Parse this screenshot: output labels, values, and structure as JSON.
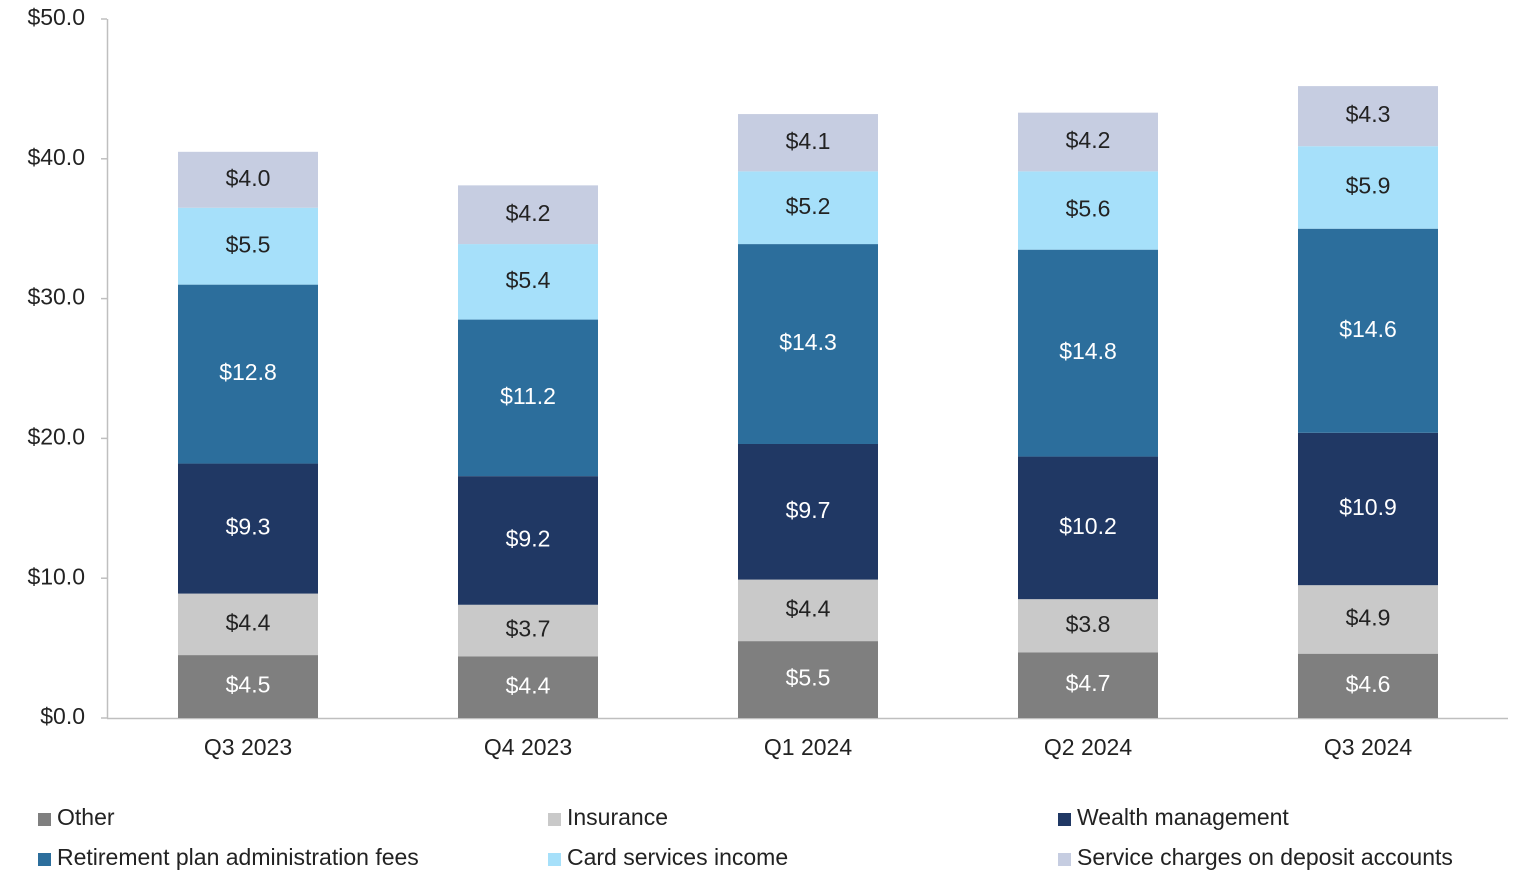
{
  "chart_data": {
    "type": "stacked_bar",
    "categories": [
      "Q3 2023",
      "Q4 2023",
      "Q1 2024",
      "Q2 2024",
      "Q3 2024"
    ],
    "series": [
      {
        "name": "Other",
        "color": "#7f7f7f",
        "label_color": "#ffffff",
        "values": [
          4.5,
          4.4,
          5.5,
          4.7,
          4.6
        ],
        "value_labels": [
          "$4.5",
          "$4.4",
          "$5.5",
          "$4.7",
          "$4.6"
        ]
      },
      {
        "name": "Insurance",
        "color": "#c9c9c9",
        "label_color": "#222222",
        "values": [
          4.4,
          3.7,
          4.4,
          3.8,
          4.9
        ],
        "value_labels": [
          "$4.4",
          "$3.7",
          "$4.4",
          "$3.8",
          "$4.9"
        ]
      },
      {
        "name": "Wealth management",
        "color": "#203864",
        "label_color": "#ffffff",
        "values": [
          9.3,
          9.2,
          9.7,
          10.2,
          10.9
        ],
        "value_labels": [
          "$9.3",
          "$9.2",
          "$9.7",
          "$10.2",
          "$10.9"
        ]
      },
      {
        "name": "Retirement plan administration fees",
        "color": "#2c6e9c",
        "label_color": "#ffffff",
        "values": [
          12.8,
          11.2,
          14.3,
          14.8,
          14.6
        ],
        "value_labels": [
          "$12.8",
          "$11.2",
          "$14.3",
          "$14.8",
          "$14.6"
        ]
      },
      {
        "name": "Card services income",
        "color": "#a6e0fa",
        "label_color": "#222222",
        "values": [
          5.5,
          5.4,
          5.2,
          5.6,
          5.9
        ],
        "value_labels": [
          "$5.5",
          "$5.4",
          "$5.2",
          "$5.6",
          "$5.9"
        ]
      },
      {
        "name": "Service charges on deposit accounts",
        "color": "#c6cde1",
        "label_color": "#222222",
        "values": [
          4.0,
          4.2,
          4.1,
          4.2,
          4.3
        ],
        "value_labels": [
          "$4.0",
          "$4.2",
          "$4.1",
          "$4.2",
          "$4.3"
        ]
      }
    ],
    "ylim": [
      0,
      50
    ],
    "yticks": [
      {
        "value": 0,
        "label": "$0.0"
      },
      {
        "value": 10,
        "label": "$10.0"
      },
      {
        "value": 20,
        "label": "$20.0"
      },
      {
        "value": 30,
        "label": "$30.0"
      },
      {
        "value": 40,
        "label": "$40.0"
      },
      {
        "value": 50,
        "label": "$50.0"
      }
    ],
    "legend": "bottom"
  }
}
